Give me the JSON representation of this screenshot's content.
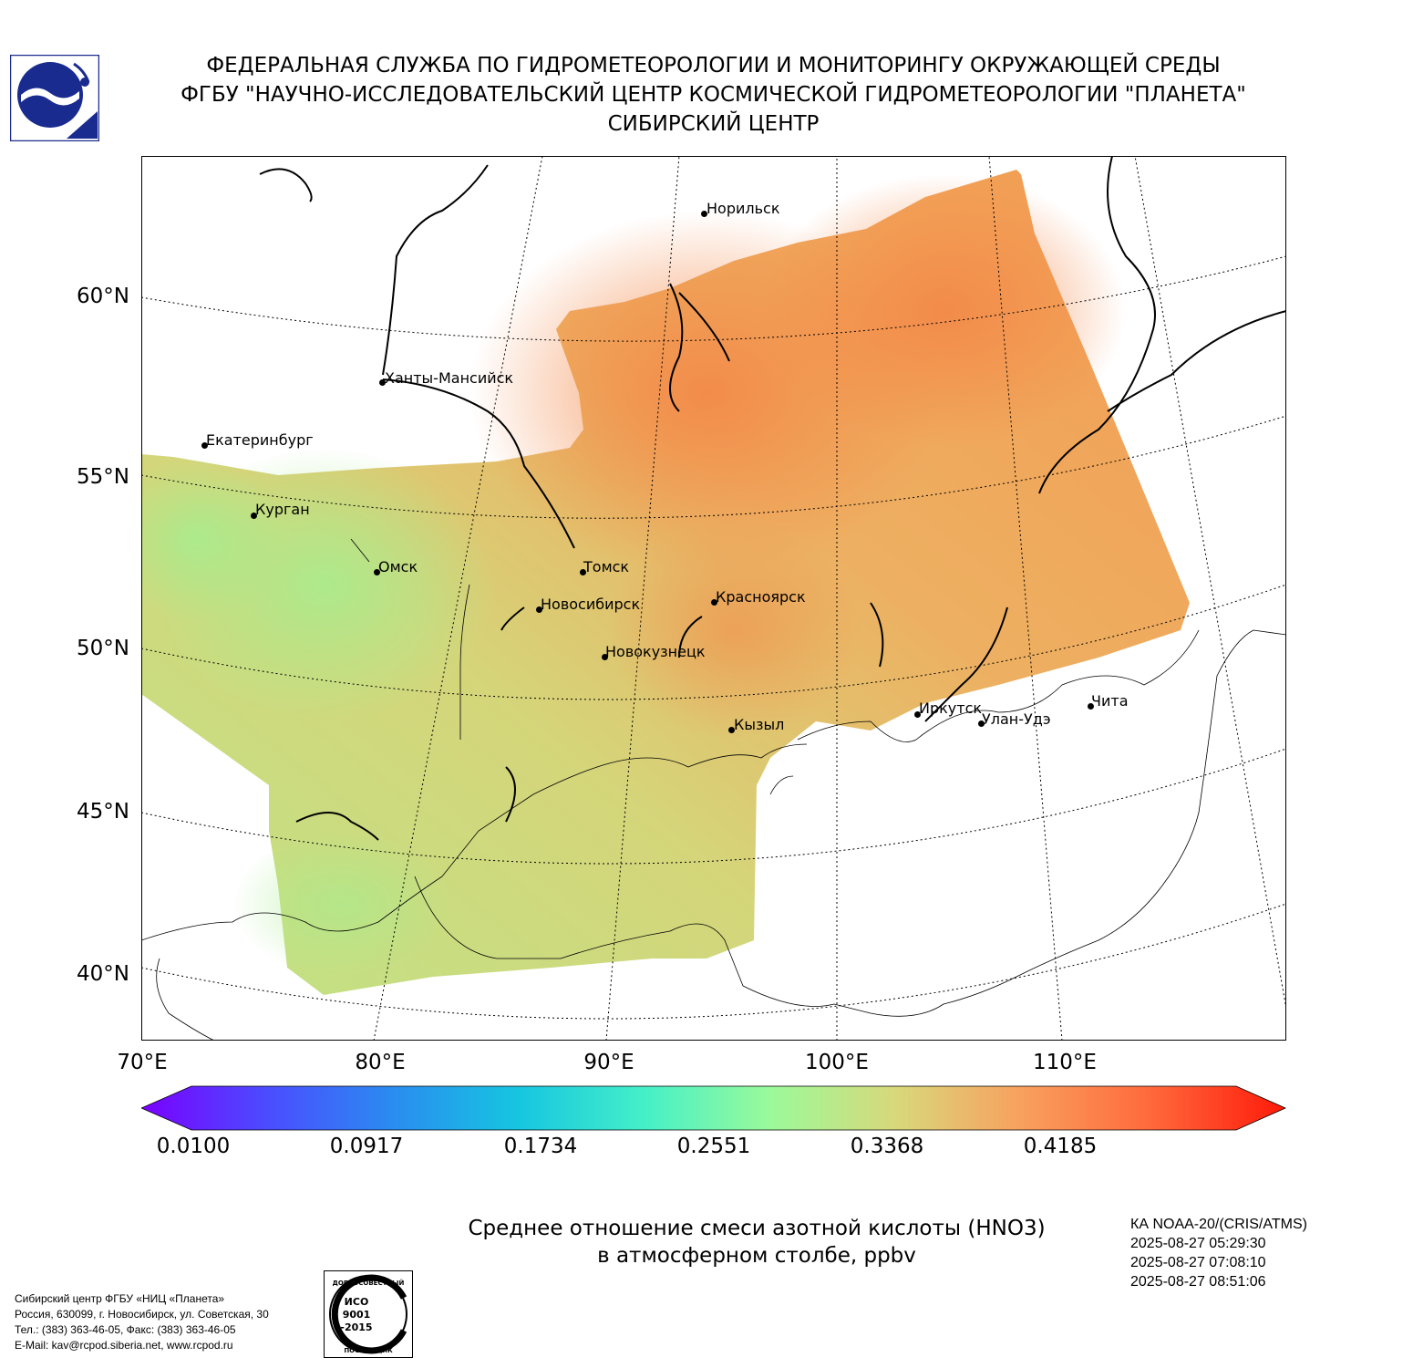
{
  "header": {
    "line1": "ФЕДЕРАЛЬНАЯ СЛУЖБА ПО ГИДРОМЕТЕОРОЛОГИИ И МОНИТОРИНГУ ОКРУЖАЮЩЕЙ СРЕДЫ",
    "line2": "ФГБУ \"НАУЧНО-ИССЛЕДОВАТЕЛЬСКИЙ ЦЕНТР КОСМИЧЕСКОЙ ГИДРОМЕТЕОРОЛОГИИ \"ПЛАНЕТА\"",
    "line3": "СИБИРСКИЙ ЦЕНТР"
  },
  "map": {
    "lat_labels": [
      "60°N",
      "55°N",
      "50°N",
      "45°N",
      "40°N"
    ],
    "lon_labels": [
      "70°E",
      "80°E",
      "90°E",
      "100°E",
      "110°E"
    ],
    "cities": [
      {
        "name": "Норильск"
      },
      {
        "name": "Ханты-Мансийск"
      },
      {
        "name": "Екатеринбург"
      },
      {
        "name": "Курган"
      },
      {
        "name": "Омск"
      },
      {
        "name": "Томск"
      },
      {
        "name": "Новосибирск"
      },
      {
        "name": "Красноярск"
      },
      {
        "name": "Новокузнецк"
      },
      {
        "name": "Иркутск"
      },
      {
        "name": "Улан-Удэ"
      },
      {
        "name": "Чита"
      },
      {
        "name": "Кызыл"
      }
    ],
    "field_colors": {
      "low": "#9af098",
      "mid": "#d7d67a",
      "high": "#f4924a"
    }
  },
  "colorbar": {
    "ticks": [
      "0.0100",
      "0.0917",
      "0.1734",
      "0.2551",
      "0.3368",
      "0.4185"
    ],
    "colors": [
      "#7a00ff",
      "#4b4cff",
      "#2a8cf0",
      "#16c6e0",
      "#45f0c8",
      "#9bfa9a",
      "#d8d87a",
      "#f8a05e",
      "#ff6a3c",
      "#ff1a0a"
    ]
  },
  "title": {
    "line1": "Среднее отношение смеси азотной кислоты (HNO3)",
    "line2": "в атмосферном столбе, ppbv"
  },
  "satellite": {
    "name": "КА NOAA-20/(CRIS/ATMS)",
    "passes": [
      "2025-08-27 05:29:30",
      "2025-08-27 07:08:10",
      "2025-08-27 08:51:06"
    ]
  },
  "contact": {
    "line1": "Сибирский центр ФГБУ «НИЦ «Планета»",
    "line2": "Россия, 630099, г. Новосибирск, ул. Советская, 30",
    "line3": "Тел.: (383) 363-46-05, Факс: (383) 363-46-05",
    "line4": "E-Mail: kav@rcpod.siberia.net, www.rcpod.ru"
  },
  "iso_badge": {
    "top": "ДОБРОСОВЕСТНЫЙ",
    "mid1": "ИСО",
    "mid2": "9001",
    "mid3": "-2015",
    "bottom": "ПОСТАВЩИК"
  }
}
